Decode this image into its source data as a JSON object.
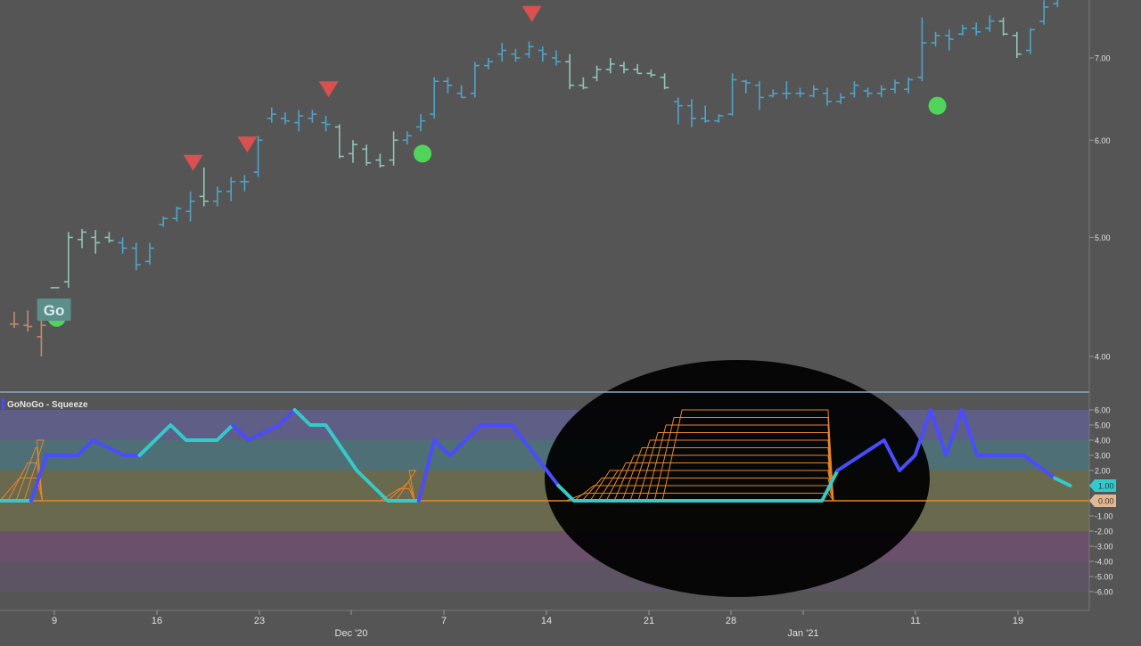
{
  "colors": {
    "background": "#555555",
    "go_bar": "#4fa3c8",
    "go_weak_bar": "#8fc4b8",
    "nogo_bar": "#c48a6e",
    "go_dot": "#4fd65a",
    "sell_triangle": "#d95050",
    "osc_strong": "#4b4bff",
    "osc_light": "#36c9c9",
    "squeeze_line": "#e8852a",
    "zero_line": "#e8852a",
    "panel_separator": "#8fa6c0",
    "highlight_ellipse": "#000000",
    "band_top": "#5e5e86",
    "band_upper": "#4f6f76",
    "band_mid": "#69694e",
    "band_low": "#6a506a",
    "band_bottom": "#5c5462"
  },
  "go_label": "Go",
  "indicator": {
    "title": "GoNoGo - Squeeze"
  },
  "price_axis": {
    "ticks": [
      "7.00",
      "6.00",
      "5.00",
      "4.00"
    ],
    "scale": "log"
  },
  "oscillator_axis": {
    "ticks": [
      "6.00",
      "5.00",
      "4.00",
      "3.00",
      "2.00",
      "1.00",
      "0.00",
      "-1.00",
      "-2.00",
      "-3.00",
      "-4.00",
      "-5.00",
      "-6.00"
    ],
    "current_value": "1.00",
    "zero_value": "0.00"
  },
  "x_axis": {
    "day_labels": [
      "9",
      "16",
      "23",
      "7",
      "14",
      "21",
      "28",
      "11",
      "19"
    ],
    "month_labels": [
      "Dec '20",
      "Jan '21"
    ]
  },
  "chart_data": [
    {
      "type": "ohlc",
      "description_scale": "log",
      "bars": [
        {
          "c": "nogo",
          "h": 4.35,
          "l": 4.22,
          "o": 4.25,
          "cl": 4.25
        },
        {
          "c": "nogo",
          "h": 4.36,
          "l": 4.19,
          "o": 4.24,
          "cl": 4.23
        },
        {
          "c": "nogo",
          "h": 4.28,
          "l": 4.0,
          "o": 4.15,
          "cl": 4.24
        },
        {
          "c": "go_weak",
          "h": 4.55,
          "l": 4.55,
          "o": 4.55,
          "cl": 4.55
        },
        {
          "c": "go_weak",
          "h": 5.05,
          "l": 4.55,
          "o": 4.6,
          "cl": 5.0
        },
        {
          "c": "go_weak",
          "h": 5.08,
          "l": 4.9,
          "o": 4.98,
          "cl": 5.05
        },
        {
          "c": "go_weak",
          "h": 5.07,
          "l": 4.85,
          "o": 5.0,
          "cl": 4.95
        },
        {
          "c": "go_weak",
          "h": 5.05,
          "l": 4.95,
          "o": 5.0,
          "cl": 4.97
        },
        {
          "c": "go",
          "h": 5.0,
          "l": 4.85,
          "o": 4.95,
          "cl": 4.9
        },
        {
          "c": "go",
          "h": 4.95,
          "l": 4.7,
          "o": 4.9,
          "cl": 4.75
        },
        {
          "c": "go",
          "h": 4.95,
          "l": 4.75,
          "o": 4.78,
          "cl": 4.9
        },
        {
          "c": "go",
          "h": 5.2,
          "l": 5.1,
          "o": 5.12,
          "cl": 5.18
        },
        {
          "c": "go",
          "h": 5.3,
          "l": 5.15,
          "o": 5.18,
          "cl": 5.28
        },
        {
          "c": "go",
          "h": 5.45,
          "l": 5.15,
          "o": 5.25,
          "cl": 5.35
        },
        {
          "c": "go_weak",
          "h": 5.7,
          "l": 5.3,
          "o": 5.4,
          "cl": 5.35
        },
        {
          "c": "go",
          "h": 5.5,
          "l": 5.3,
          "o": 5.35,
          "cl": 5.45
        },
        {
          "c": "go",
          "h": 5.6,
          "l": 5.35,
          "o": 5.45,
          "cl": 5.55
        },
        {
          "c": "go",
          "h": 5.62,
          "l": 5.45,
          "o": 5.55,
          "cl": 5.55
        },
        {
          "c": "go",
          "h": 6.05,
          "l": 5.6,
          "o": 5.65,
          "cl": 6.0
        },
        {
          "c": "go",
          "h": 6.38,
          "l": 6.2,
          "o": 6.25,
          "cl": 6.3
        },
        {
          "c": "go",
          "h": 6.32,
          "l": 6.18,
          "o": 6.25,
          "cl": 6.22
        },
        {
          "c": "go",
          "h": 6.35,
          "l": 6.1,
          "o": 6.2,
          "cl": 6.28
        },
        {
          "c": "go",
          "h": 6.35,
          "l": 6.2,
          "o": 6.25,
          "cl": 6.3
        },
        {
          "c": "go",
          "h": 6.28,
          "l": 6.1,
          "o": 6.2,
          "cl": 6.18
        },
        {
          "c": "go_weak",
          "h": 6.18,
          "l": 5.8,
          "o": 6.15,
          "cl": 5.82
        },
        {
          "c": "go_weak",
          "h": 6.0,
          "l": 5.75,
          "o": 5.85,
          "cl": 5.95
        },
        {
          "c": "go_weak",
          "h": 5.95,
          "l": 5.72,
          "o": 5.9,
          "cl": 5.75
        },
        {
          "c": "go_weak",
          "h": 5.85,
          "l": 5.7,
          "o": 5.78,
          "cl": 5.72
        },
        {
          "c": "go_weak",
          "h": 6.1,
          "l": 5.72,
          "o": 5.78,
          "cl": 6.0
        },
        {
          "c": "go",
          "h": 6.1,
          "l": 5.95,
          "o": 6.0,
          "cl": 6.05
        },
        {
          "c": "go",
          "h": 6.3,
          "l": 6.1,
          "o": 6.15,
          "cl": 6.22
        },
        {
          "c": "go",
          "h": 6.75,
          "l": 6.25,
          "o": 6.3,
          "cl": 6.7
        },
        {
          "c": "go",
          "h": 6.75,
          "l": 6.55,
          "o": 6.7,
          "cl": 6.65
        },
        {
          "c": "go",
          "h": 6.65,
          "l": 6.5,
          "o": 6.55,
          "cl": 6.5
        },
        {
          "c": "go",
          "h": 6.95,
          "l": 6.5,
          "o": 6.55,
          "cl": 6.9
        },
        {
          "c": "go",
          "h": 7.0,
          "l": 6.85,
          "o": 6.9,
          "cl": 6.95
        },
        {
          "c": "go",
          "h": 7.2,
          "l": 6.95,
          "o": 7.05,
          "cl": 7.1
        },
        {
          "c": "go",
          "h": 7.12,
          "l": 6.95,
          "o": 7.05,
          "cl": 7.0
        },
        {
          "c": "go",
          "h": 7.22,
          "l": 7.0,
          "o": 7.05,
          "cl": 7.15
        },
        {
          "c": "go",
          "h": 7.15,
          "l": 6.95,
          "o": 7.1,
          "cl": 7.05
        },
        {
          "c": "go",
          "h": 7.1,
          "l": 6.9,
          "o": 7.0,
          "cl": 6.95
        },
        {
          "c": "go_weak",
          "h": 7.05,
          "l": 6.6,
          "o": 6.95,
          "cl": 6.65
        },
        {
          "c": "go_weak",
          "h": 6.75,
          "l": 6.6,
          "o": 6.65,
          "cl": 6.62
        },
        {
          "c": "go_weak",
          "h": 6.9,
          "l": 6.7,
          "o": 6.75,
          "cl": 6.85
        },
        {
          "c": "go_weak",
          "h": 7.0,
          "l": 6.8,
          "o": 6.85,
          "cl": 6.92
        },
        {
          "c": "go_weak",
          "h": 6.95,
          "l": 6.8,
          "o": 6.9,
          "cl": 6.85
        },
        {
          "c": "go_weak",
          "h": 6.92,
          "l": 6.8,
          "o": 6.85,
          "cl": 6.8
        },
        {
          "c": "go_weak",
          "h": 6.85,
          "l": 6.75,
          "o": 6.8,
          "cl": 6.78
        },
        {
          "c": "go_weak",
          "h": 6.8,
          "l": 6.6,
          "o": 6.75,
          "cl": 6.62
        },
        {
          "c": "go",
          "h": 6.5,
          "l": 6.18,
          "o": 6.45,
          "cl": 6.4
        },
        {
          "c": "go",
          "h": 6.48,
          "l": 6.15,
          "o": 6.4,
          "cl": 6.25
        },
        {
          "c": "go",
          "h": 6.4,
          "l": 6.2,
          "o": 6.25,
          "cl": 6.22
        },
        {
          "c": "go",
          "h": 6.3,
          "l": 6.2,
          "o": 6.22,
          "cl": 6.28
        },
        {
          "c": "go",
          "h": 6.8,
          "l": 6.28,
          "o": 6.3,
          "cl": 6.72
        },
        {
          "c": "go",
          "h": 6.72,
          "l": 6.55,
          "o": 6.7,
          "cl": 6.68
        },
        {
          "c": "go",
          "h": 6.7,
          "l": 6.35,
          "o": 6.65,
          "cl": 6.5
        },
        {
          "c": "go",
          "h": 6.6,
          "l": 6.5,
          "o": 6.52,
          "cl": 6.55
        },
        {
          "c": "go",
          "h": 6.7,
          "l": 6.48,
          "o": 6.55,
          "cl": 6.55
        },
        {
          "c": "go",
          "h": 6.62,
          "l": 6.5,
          "o": 6.55,
          "cl": 6.55
        },
        {
          "c": "go",
          "h": 6.65,
          "l": 6.5,
          "o": 6.52,
          "cl": 6.6
        },
        {
          "c": "go",
          "h": 6.62,
          "l": 6.4,
          "o": 6.55,
          "cl": 6.45
        },
        {
          "c": "go",
          "h": 6.55,
          "l": 6.42,
          "o": 6.45,
          "cl": 6.5
        },
        {
          "c": "go",
          "h": 6.7,
          "l": 6.5,
          "o": 6.55,
          "cl": 6.65
        },
        {
          "c": "go",
          "h": 6.62,
          "l": 6.5,
          "o": 6.58,
          "cl": 6.55
        },
        {
          "c": "go",
          "h": 6.65,
          "l": 6.5,
          "o": 6.55,
          "cl": 6.6
        },
        {
          "c": "go",
          "h": 6.72,
          "l": 6.55,
          "o": 6.6,
          "cl": 6.68
        },
        {
          "c": "go",
          "h": 6.75,
          "l": 6.55,
          "o": 6.6,
          "cl": 6.72
        },
        {
          "c": "go",
          "h": 7.55,
          "l": 6.7,
          "o": 6.75,
          "cl": 7.2
        },
        {
          "c": "go",
          "h": 7.35,
          "l": 7.15,
          "o": 7.2,
          "cl": 7.3
        },
        {
          "c": "go",
          "h": 7.38,
          "l": 7.1,
          "o": 7.3,
          "cl": 7.25
        },
        {
          "c": "go",
          "h": 7.45,
          "l": 7.3,
          "o": 7.32,
          "cl": 7.4
        },
        {
          "c": "go",
          "h": 7.48,
          "l": 7.3,
          "o": 7.4,
          "cl": 7.35
        },
        {
          "c": "go",
          "h": 7.58,
          "l": 7.35,
          "o": 7.4,
          "cl": 7.5
        },
        {
          "c": "go_weak",
          "h": 7.55,
          "l": 7.3,
          "o": 7.5,
          "cl": 7.32
        },
        {
          "c": "go_weak",
          "h": 7.35,
          "l": 7.0,
          "o": 7.3,
          "cl": 7.05
        },
        {
          "c": "go",
          "h": 7.4,
          "l": 7.05,
          "o": 7.1,
          "cl": 7.38
        },
        {
          "c": "go",
          "h": 7.8,
          "l": 7.45,
          "o": 7.5,
          "cl": 7.7
        },
        {
          "c": "go",
          "h": 7.9,
          "l": 7.7,
          "o": 7.75,
          "cl": 7.85
        }
      ],
      "go_dots": [
        {
          "bar": 3,
          "value": 4.3
        },
        {
          "bar": 30,
          "value": 5.85
        },
        {
          "bar": 68,
          "value": 6.4
        }
      ],
      "sell_signals": [
        {
          "bar": 13,
          "value": 5.75
        },
        {
          "bar": 17,
          "value": 5.95
        },
        {
          "bar": 23,
          "value": 6.6
        },
        {
          "bar": 38,
          "value": 7.6
        }
      ],
      "go_label_bar": 3
    },
    {
      "type": "line",
      "name": "GoNoGo - Squeeze",
      "ylim": [
        -6,
        6
      ],
      "series": [
        {
          "color_key": "osc_light",
          "segments": [
            [
              0,
              0
            ],
            [
              1,
              0
            ],
            [
              2,
              0
            ]
          ]
        },
        {
          "color_key": "osc_strong",
          "segments": [
            [
              2,
              0
            ],
            [
              3,
              3
            ],
            [
              4,
              3
            ],
            [
              5,
              3
            ],
            [
              6,
              4
            ],
            [
              7,
              3.5
            ],
            [
              8,
              3
            ],
            [
              9,
              3
            ]
          ]
        },
        {
          "color_key": "osc_light",
          "segments": [
            [
              9,
              3
            ],
            [
              11,
              5
            ],
            [
              12,
              4
            ],
            [
              14,
              4
            ],
            [
              15,
              5
            ]
          ]
        },
        {
          "color_key": "osc_strong",
          "segments": [
            [
              15,
              5
            ],
            [
              16,
              4
            ],
            [
              18,
              5
            ],
            [
              19,
              6
            ]
          ]
        },
        {
          "color_key": "osc_light",
          "segments": [
            [
              19,
              6
            ],
            [
              20,
              5
            ],
            [
              21,
              5
            ],
            [
              23,
              2
            ],
            [
              25,
              0
            ],
            [
              27,
              0
            ]
          ]
        },
        {
          "color_key": "osc_strong",
          "segments": [
            [
              27,
              0
            ],
            [
              28,
              4
            ],
            [
              29,
              3
            ],
            [
              31,
              5
            ],
            [
              33,
              5
            ],
            [
              36,
              1
            ]
          ]
        },
        {
          "color_key": "osc_light",
          "segments": [
            [
              36,
              1
            ],
            [
              37,
              0
            ],
            [
              53,
              0
            ],
            [
              54,
              2
            ]
          ]
        },
        {
          "color_key": "osc_strong",
          "segments": [
            [
              54,
              2
            ],
            [
              57,
              4
            ],
            [
              58,
              2
            ],
            [
              59,
              3
            ],
            [
              60,
              6
            ],
            [
              61,
              3
            ],
            [
              62,
              6
            ],
            [
              63,
              3
            ],
            [
              66,
              3
            ],
            [
              68,
              1.5
            ]
          ]
        },
        {
          "color_key": "osc_light",
          "segments": [
            [
              68,
              1.5
            ],
            [
              69,
              1
            ]
          ]
        }
      ]
    }
  ]
}
